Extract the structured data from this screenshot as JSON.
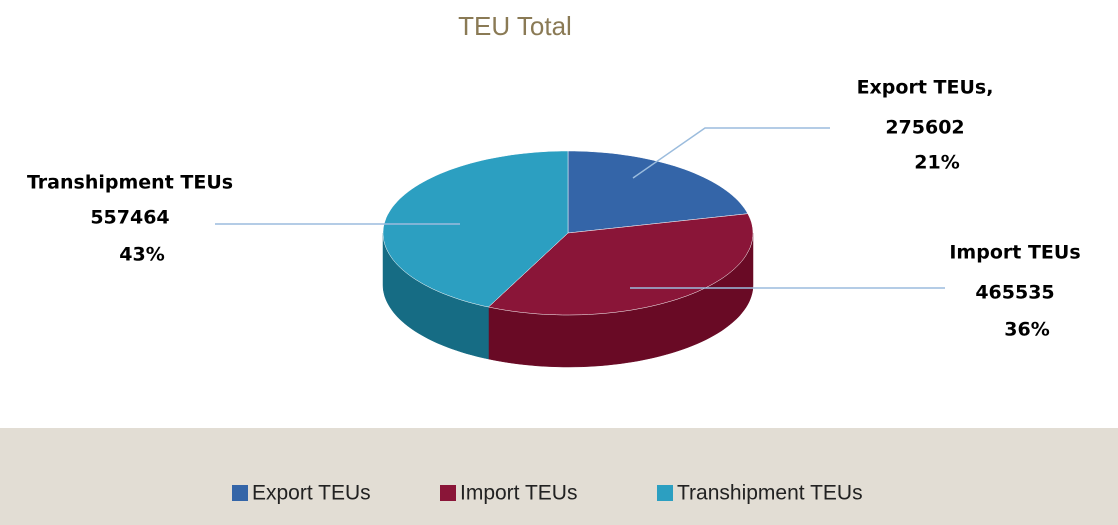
{
  "chart_data": {
    "type": "pie3d",
    "title": "TEU Total",
    "categories": [
      "Export TEUs",
      "Import TEUs",
      "Transhipment TEUs"
    ],
    "label_texts": [
      "Export TEUs,",
      "Import TEUs",
      "Transhipment TEUs"
    ],
    "values": [
      275602,
      465535,
      557464
    ],
    "percents": [
      21,
      36,
      43
    ],
    "percent_labels": [
      "21%",
      "36%",
      "43%"
    ],
    "colors": [
      "#3465a8",
      "#8a1538",
      "#2c9fc1"
    ],
    "side_colors": [
      "#234a80",
      "#690a25",
      "#166c84"
    ],
    "legend": "bottom"
  }
}
